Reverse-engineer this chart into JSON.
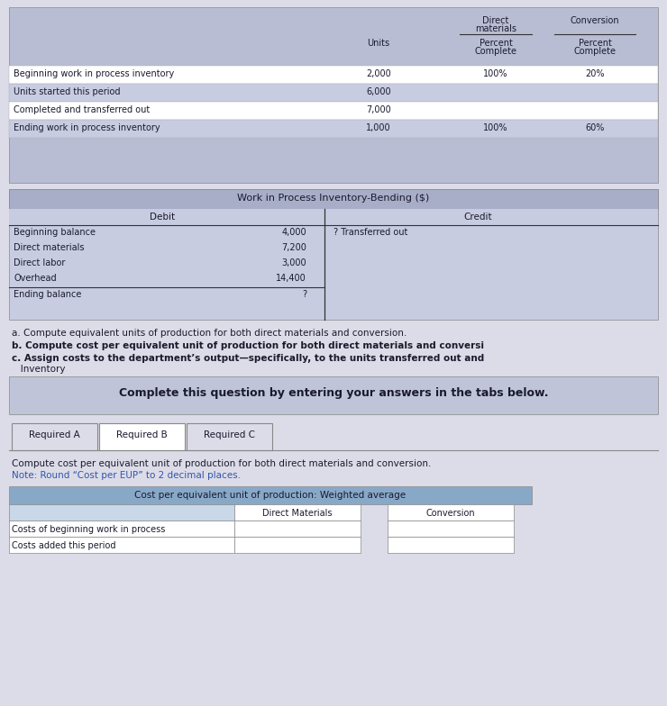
{
  "bg_color": "#dcdce8",
  "white": "#ffffff",
  "table1_bg": "#b8bdd4",
  "row_white": "#ffffff",
  "row_light": "#c8cce0",
  "wip_title_bg": "#a8aec8",
  "wip_row_bg": "#c8cce0",
  "complete_box_bg": "#c0c4d8",
  "tab_bg": "#dcdce8",
  "tab_active_bg": "#ffffff",
  "bottom_table_title_bg": "#88a8c8",
  "bottom_table_row_bg": "#c8d8e8",
  "blue_note_color": "#3355aa",
  "text_color": "#1a1a2e",
  "top_table": {
    "rows": [
      [
        "Beginning work in process inventory",
        "2,000",
        "100%",
        "20%"
      ],
      [
        "Units started this period",
        "6,000",
        "",
        ""
      ],
      [
        "Completed and transferred out",
        "7,000",
        "",
        ""
      ],
      [
        "Ending work in process inventory",
        "1,000",
        "100%",
        "60%"
      ]
    ]
  },
  "wip_table": {
    "title": "Work in Process Inventory-Bending ($)",
    "debit_rows": [
      [
        "Beginning balance",
        "4,000"
      ],
      [
        "Direct materials",
        "7,200"
      ],
      [
        "Direct labor",
        "3,000"
      ],
      [
        "Overhead",
        "14,400"
      ]
    ],
    "credit_text": "? Transferred out",
    "ending_label": "Ending balance",
    "ending_value": "?"
  },
  "bullet_a": "a. Compute equivalent units of production for both direct materials and conversion.",
  "bullet_b": "b. Compute cost per equivalent unit of production for both direct materials and conversi",
  "bullet_c1": "c. Assign costs to the department’s output—specifically, to the units transferred out and",
  "bullet_c2": "   Inventory",
  "complete_text": "Complete this question by entering your answers in the tabs below.",
  "tabs": [
    "Required A",
    "Required B",
    "Required C"
  ],
  "active_tab_idx": 1,
  "instr1": "Compute cost per equivalent unit of production for both direct materials and conversion.",
  "instr2": "Note: Round “Cost per EUP” to 2 decimal places.",
  "bottom_table_title": "Cost per equivalent unit of production: Weighted average",
  "bottom_rows": [
    "Costs of beginning work in process",
    "Costs added this period"
  ]
}
